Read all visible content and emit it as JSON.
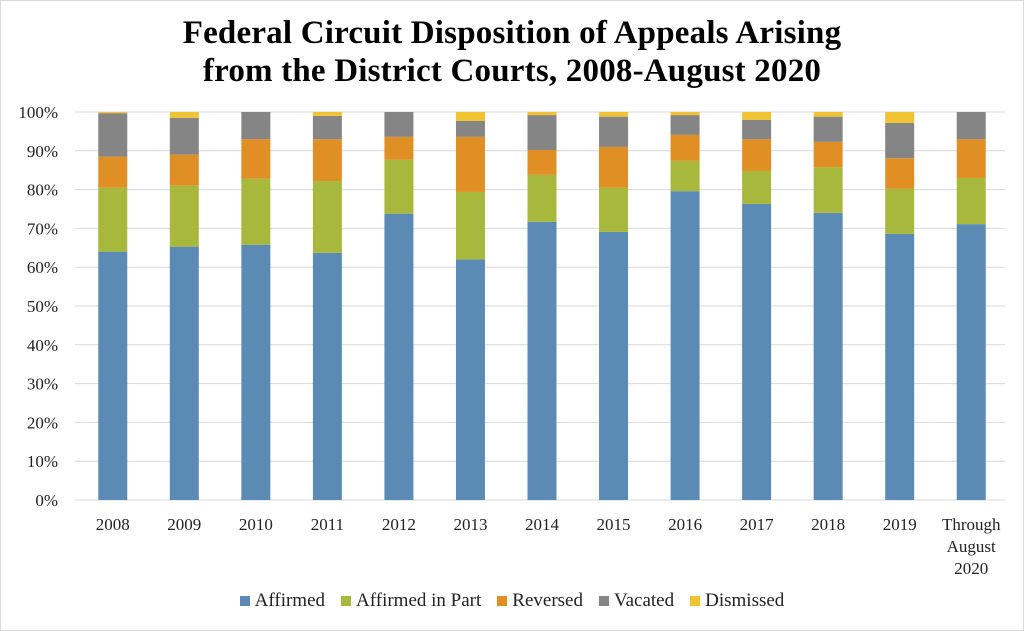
{
  "chart_data": {
    "type": "bar",
    "stacked": true,
    "percent_stacked": true,
    "title": "Federal Circuit Disposition of Appeals Arising from the District Courts, 2008-August 2020",
    "title_lines": [
      "Federal Circuit Disposition of Appeals Arising",
      "from the District Courts, 2008-August 2020"
    ],
    "xlabel": "",
    "ylabel": "",
    "ylim": [
      0,
      100
    ],
    "yticks": [
      0,
      10,
      20,
      30,
      40,
      50,
      60,
      70,
      80,
      90,
      100
    ],
    "ytick_labels": [
      "0%",
      "10%",
      "20%",
      "30%",
      "40%",
      "50%",
      "60%",
      "70%",
      "80%",
      "90%",
      "100%"
    ],
    "grid": true,
    "legend_position": "bottom",
    "categories": [
      "2008",
      "2009",
      "2010",
      "2011",
      "2012",
      "2013",
      "2014",
      "2015",
      "2016",
      "2017",
      "2018",
      "2019",
      "Through August 2020"
    ],
    "category_label_lines": [
      [
        "2008"
      ],
      [
        "2009"
      ],
      [
        "2010"
      ],
      [
        "2011"
      ],
      [
        "2012"
      ],
      [
        "2013"
      ],
      [
        "2014"
      ],
      [
        "2015"
      ],
      [
        "2016"
      ],
      [
        "2017"
      ],
      [
        "2018"
      ],
      [
        "2019"
      ],
      [
        "Through",
        "August",
        "2020"
      ]
    ],
    "series": [
      {
        "name": "Affirmed",
        "color": "#5b8bb5",
        "values": [
          64.0,
          65.3,
          65.8,
          63.7,
          73.8,
          62.0,
          71.7,
          69.1,
          79.6,
          76.3,
          74.0,
          68.6,
          71.1
        ]
      },
      {
        "name": "Affirmed in Part",
        "color": "#a8b83c",
        "values": [
          16.5,
          15.7,
          17.0,
          18.5,
          13.9,
          17.4,
          12.1,
          11.4,
          7.8,
          8.5,
          11.8,
          11.6,
          11.9
        ]
      },
      {
        "name": "Reversed",
        "color": "#e08f25",
        "values": [
          8.0,
          8.0,
          10.2,
          10.8,
          5.9,
          14.2,
          6.4,
          10.5,
          6.7,
          8.2,
          6.5,
          7.9,
          10.0
        ]
      },
      {
        "name": "Vacated",
        "color": "#858585",
        "values": [
          11.2,
          9.5,
          7.0,
          6.0,
          6.4,
          4.1,
          9.0,
          7.8,
          5.1,
          5.0,
          6.5,
          9.1,
          7.0
        ]
      },
      {
        "name": "Dismissed",
        "color": "#efc332",
        "values": [
          0.3,
          1.5,
          0.0,
          1.0,
          0.0,
          2.3,
          0.8,
          1.2,
          0.8,
          2.0,
          1.2,
          2.8,
          0.0
        ]
      }
    ]
  }
}
